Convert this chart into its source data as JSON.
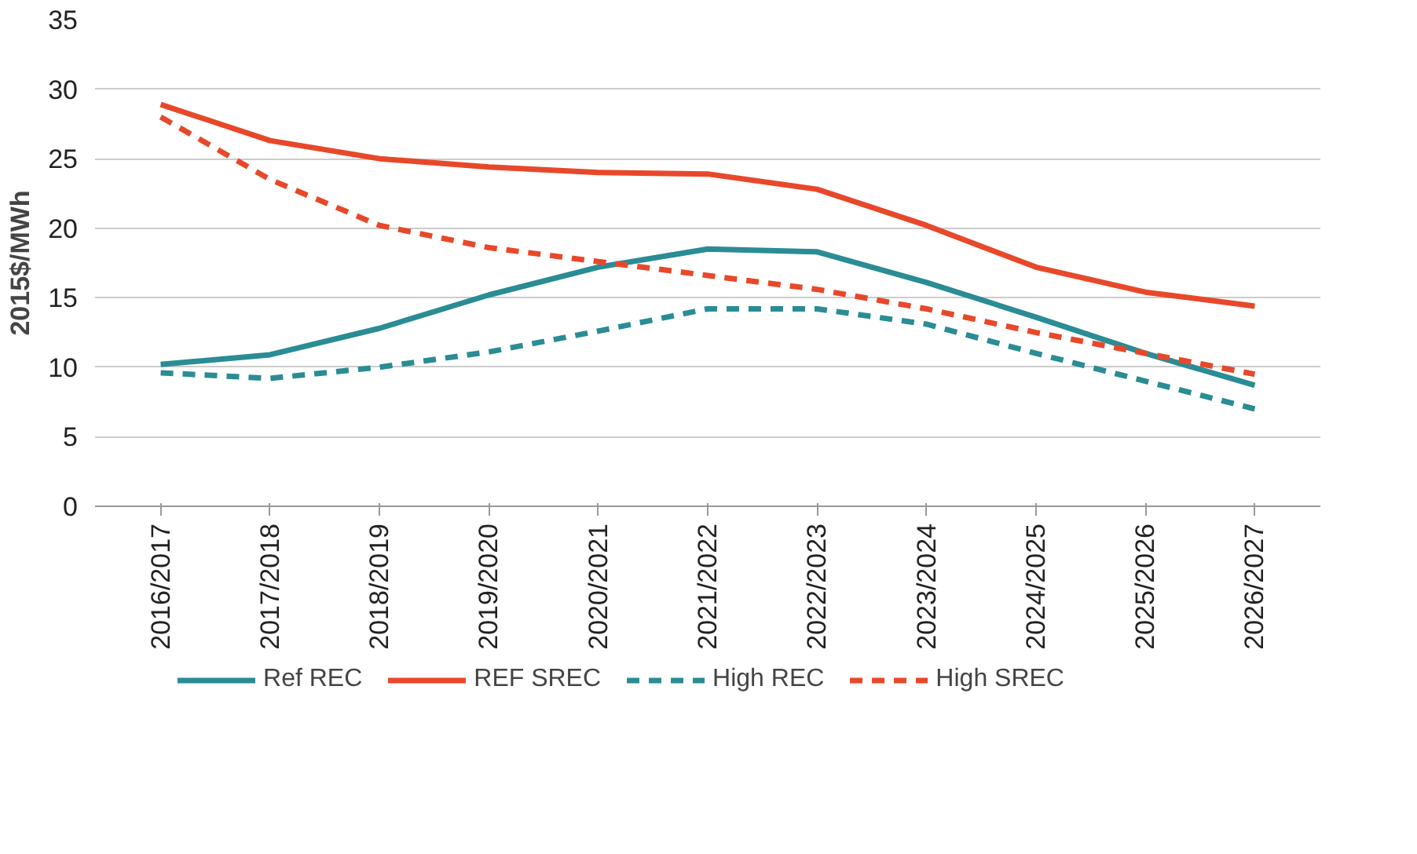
{
  "chart_data": {
    "type": "line",
    "ylabel": "2015$/MWh",
    "categories": [
      "2016/2017",
      "2017/2018",
      "2018/2019",
      "2019/2020",
      "2020/2021",
      "2021/2022",
      "2022/2023",
      "2023/2024",
      "2024/2025",
      "2025/2026",
      "2026/2027"
    ],
    "series": [
      {
        "name": "Ref REC",
        "color": "#2a8c94",
        "line_style": "solid",
        "values": [
          10.2,
          10.9,
          12.8,
          15.2,
          17.2,
          18.5,
          18.3,
          16.1,
          13.6,
          11.0,
          8.7
        ]
      },
      {
        "name": "REF SREC",
        "color": "#e8482a",
        "line_style": "solid",
        "values": [
          28.9,
          26.3,
          25.0,
          24.4,
          24.0,
          23.9,
          22.8,
          20.2,
          17.2,
          15.4,
          14.4
        ]
      },
      {
        "name": "High REC",
        "color": "#2a8c94",
        "line_style": "dashed",
        "values": [
          9.6,
          9.2,
          10.0,
          11.1,
          12.6,
          14.2,
          14.2,
          13.1,
          11.0,
          9.0,
          7.0
        ]
      },
      {
        "name": "High SREC",
        "color": "#e8482a",
        "line_style": "dashed",
        "values": [
          28.0,
          23.5,
          20.2,
          18.6,
          17.6,
          16.6,
          15.6,
          14.2,
          12.5,
          11.0,
          9.5
        ]
      }
    ],
    "ylim": [
      0,
      35
    ],
    "yticks": [
      0,
      5,
      10,
      15,
      20,
      25,
      30,
      35
    ],
    "grid": "y",
    "legend": "bottom",
    "marker": "none"
  }
}
